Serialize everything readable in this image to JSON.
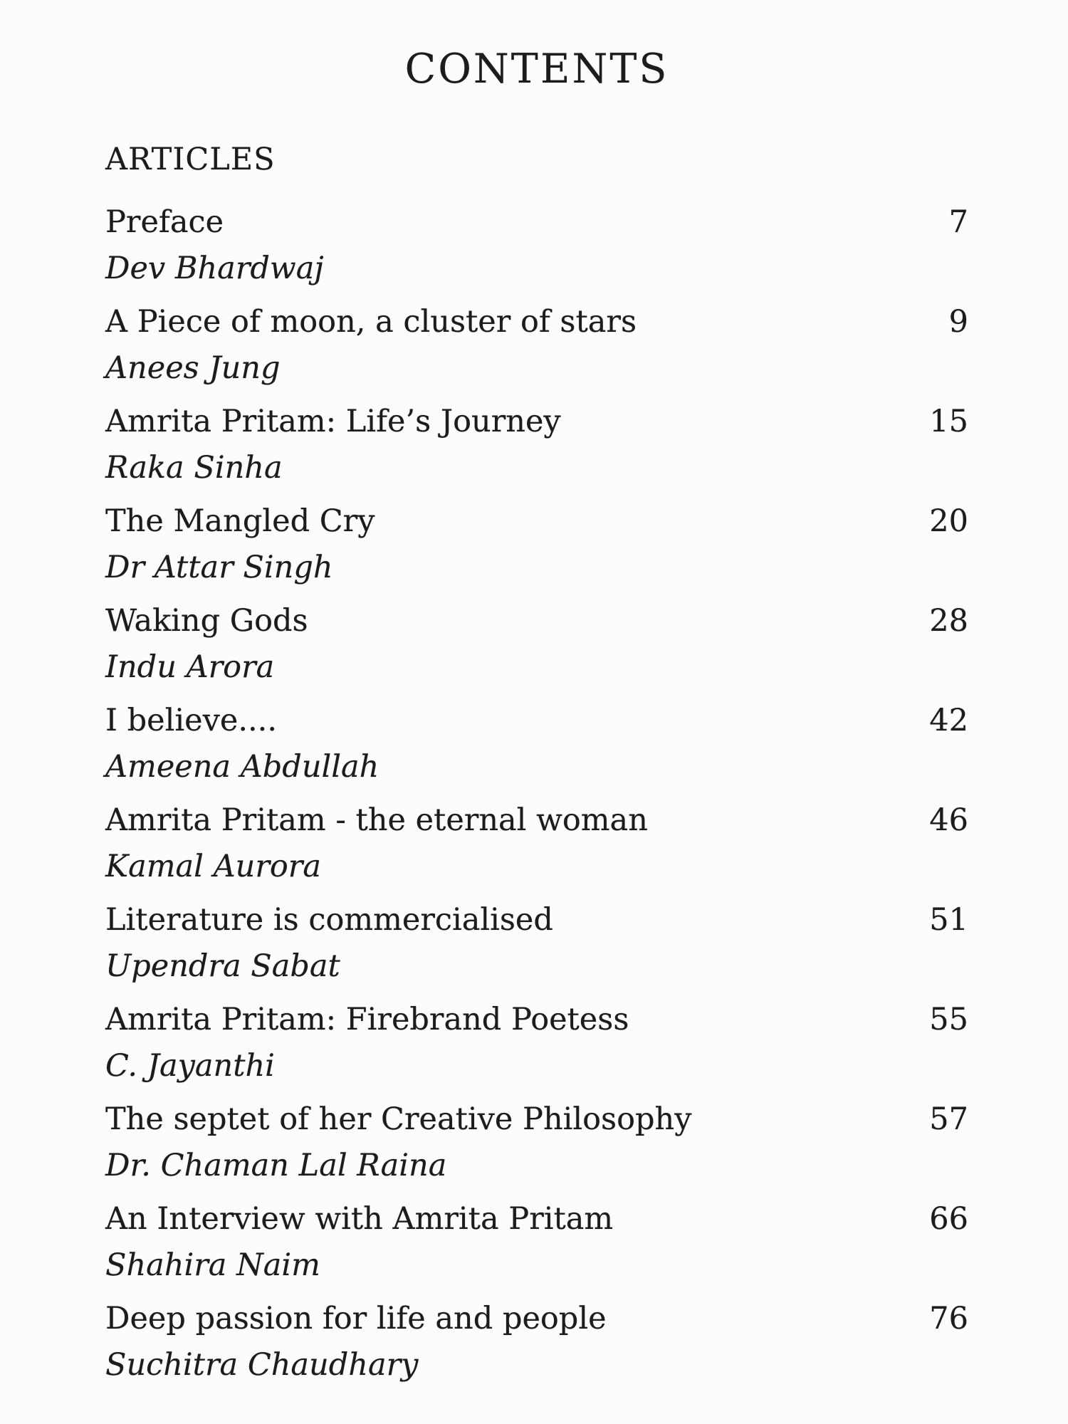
{
  "page": {
    "title": "CONTENTS",
    "section_heading": "ARTICLES",
    "paper_color": "#fcfcfb",
    "text_color": "#1c1c1c",
    "entries": [
      {
        "title": "Preface",
        "author": "Dev Bhardwaj",
        "page": "7"
      },
      {
        "title": "A Piece of moon, a cluster of stars",
        "author": "Anees Jung",
        "page": "9"
      },
      {
        "title": "Amrita Pritam: Life’s Journey",
        "author": "Raka Sinha",
        "page": "15"
      },
      {
        "title": "The Mangled Cry",
        "author": "Dr Attar Singh",
        "page": "20"
      },
      {
        "title": "Waking Gods",
        "author": "Indu Arora",
        "page": "28"
      },
      {
        "title": "I believe....",
        "author": "Ameena Abdullah",
        "page": "42"
      },
      {
        "title": "Amrita Pritam - the eternal woman",
        "author": "Kamal Aurora",
        "page": "46"
      },
      {
        "title": "Literature is commercialised",
        "author": "Upendra Sabat",
        "page": "51"
      },
      {
        "title": "Amrita Pritam: Firebrand Poetess",
        "author": "C. Jayanthi",
        "page": "55"
      },
      {
        "title": "The septet of her Creative Philosophy",
        "author": "Dr. Chaman Lal Raina",
        "page": "57"
      },
      {
        "title": "An Interview with Amrita Pritam",
        "author": "Shahira Naim",
        "page": "66"
      },
      {
        "title": "Deep passion for life and people",
        "author": "Suchitra Chaudhary",
        "page": "76"
      }
    ]
  }
}
